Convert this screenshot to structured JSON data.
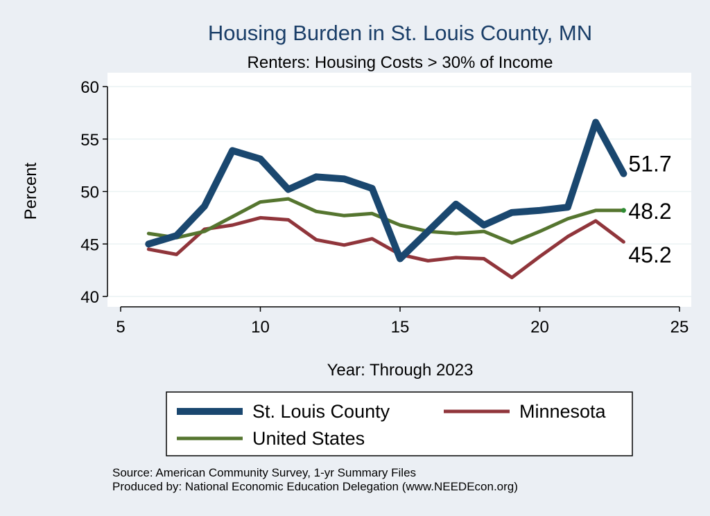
{
  "chart_data": {
    "type": "line",
    "title": "Housing Burden in St. Louis County, MN",
    "subtitle": "Renters: Housing Costs > 30% of Income",
    "xlabel": "Year: Through 2023",
    "ylabel": "Percent",
    "xlim": [
      5,
      25
    ],
    "ylim": [
      40,
      60
    ],
    "xticks": [
      5,
      10,
      15,
      20,
      25
    ],
    "yticks": [
      40,
      45,
      50,
      55,
      60
    ],
    "grid": true,
    "legend_position": "bottom",
    "x": [
      6,
      7,
      8,
      9,
      10,
      11,
      12,
      13,
      14,
      15,
      16,
      17,
      18,
      19,
      20,
      21,
      22,
      23
    ],
    "series": [
      {
        "name": "St. Louis County",
        "color": "#1a476f",
        "values": [
          45.0,
          45.8,
          48.6,
          53.9,
          53.1,
          50.2,
          51.4,
          51.2,
          50.3,
          43.6,
          46.2,
          48.8,
          46.8,
          48.0,
          48.2,
          48.5,
          56.6,
          51.7
        ],
        "end_label": "51.7"
      },
      {
        "name": "Minnesota",
        "color": "#90353b",
        "values": [
          44.5,
          44.0,
          46.4,
          46.8,
          47.5,
          47.3,
          45.4,
          44.9,
          45.5,
          44.0,
          43.4,
          43.7,
          43.6,
          41.8,
          43.8,
          45.7,
          47.2,
          45.2
        ],
        "end_label": "45.2"
      },
      {
        "name": "United States",
        "color": "#55752f",
        "values": [
          46.0,
          45.6,
          46.2,
          47.6,
          49.0,
          49.3,
          48.1,
          47.7,
          47.9,
          46.8,
          46.2,
          46.0,
          46.2,
          45.1,
          46.2,
          47.4,
          48.2,
          48.2
        ],
        "end_label": "48.2"
      }
    ],
    "source_line1": "Source: American Community Survey, 1-yr Summary Files",
    "source_line2": "Produced by: National Economic Education Delegation (www.NEEDEcon.org)"
  }
}
